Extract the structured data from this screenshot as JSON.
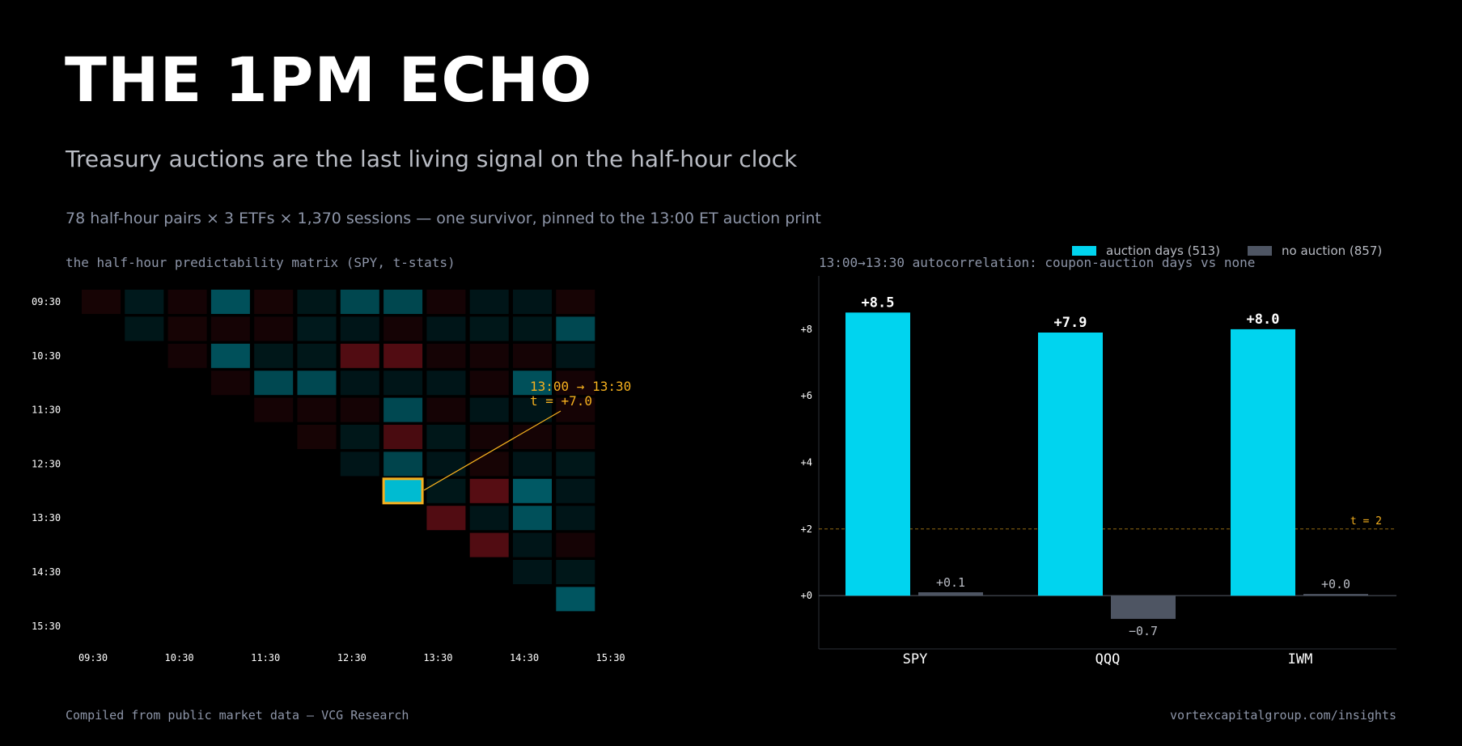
{
  "header": {
    "title": "THE 1PM ECHO",
    "subtitle": "Treasury auctions are the last living signal on the half-hour clock",
    "dek": "78 half-hour pairs × 3 ETFs × 1,370 sessions — one survivor, pinned to the 13:00 ET auction print"
  },
  "footer": {
    "source": "Compiled from public market data — VCG Research",
    "url": "vortexcapitalgroup.com/insights"
  },
  "colors": {
    "cyan": "#00d4ef",
    "gray": "#4e5563",
    "red": "#c02431",
    "amber": "#f5b01e",
    "muted": "#8d95a8"
  },
  "heatmap": {
    "label": "the half-hour predictability matrix (SPY, t-stats)",
    "row_labels": [
      "09:30",
      "",
      "10:30",
      "",
      "11:30",
      "",
      "12:30",
      "",
      "13:30",
      "",
      "14:30",
      "",
      "15:30"
    ],
    "col_labels": [
      "09:30",
      "",
      "10:30",
      "",
      "11:30",
      "",
      "12:30",
      "",
      "13:30",
      "",
      "14:30",
      "",
      "15:30"
    ],
    "annotation": {
      "line1": "13:00 → 13:30",
      "line2": "t = +7.0",
      "row": 7,
      "col": 8
    },
    "tstats": [
      [
        -0.4,
        0.5,
        -0.3,
        3.5,
        -0.4,
        0.4,
        2.8,
        2.9,
        -0.3,
        0.3,
        0.3,
        -0.4
      ],
      [
        0.4,
        -0.4,
        -0.3,
        -0.3,
        0.5,
        0.3,
        -0.3,
        0.3,
        0.4,
        0.4,
        3.0
      ],
      [
        -0.3,
        3.5,
        0.4,
        0.4,
        -3.5,
        -3.5,
        -0.3,
        -0.3,
        -0.3,
        0.3
      ],
      [
        -0.3,
        3.0,
        3.0,
        0.3,
        0.2,
        0.3,
        -0.2,
        3.5,
        -0.3
      ],
      [
        -0.3,
        -0.3,
        -0.3,
        3.0,
        -0.3,
        0.3,
        0.3,
        -0.3
      ],
      [
        -0.4,
        0.4,
        -3.0,
        0.4,
        -0.3,
        -0.3,
        -0.4
      ],
      [
        0.3,
        2.7,
        0.3,
        -0.4,
        0.3,
        0.4
      ],
      [
        7.0,
        0.4,
        -3.8,
        4.2,
        0.3
      ],
      [
        -3.5,
        0.3,
        3.6,
        0.3
      ],
      [
        -3.6,
        0.3,
        -0.3
      ],
      [
        0.3,
        0.4
      ],
      [
        3.8
      ]
    ]
  },
  "chart_data": {
    "type": "bar",
    "title": "13:00→13:30 autocorrelation: coupon-auction days vs none",
    "categories": [
      "SPY",
      "QQQ",
      "IWM"
    ],
    "series": [
      {
        "name": "auction days (513)",
        "values": [
          8.5,
          7.9,
          8.0
        ],
        "labels": [
          "+8.5",
          "+7.9",
          "+8.0"
        ],
        "color": "#00d4ef"
      },
      {
        "name": "no auction (857)",
        "values": [
          0.1,
          -0.7,
          0.0
        ],
        "labels": [
          "+0.1",
          "−0.7",
          "+0.0"
        ],
        "color": "#4e5563"
      }
    ],
    "ylim": [
      -1.6,
      9.6
    ],
    "yticks": [
      0,
      2,
      4,
      6,
      8
    ],
    "ytick_labels": [
      "+0",
      "+2",
      "+4",
      "+6",
      "+8"
    ],
    "reference_line": {
      "value": 2,
      "label": "t = 2",
      "style": "dashed",
      "color": "#f5b01e"
    },
    "legend_position": "top-right",
    "grid": false
  }
}
